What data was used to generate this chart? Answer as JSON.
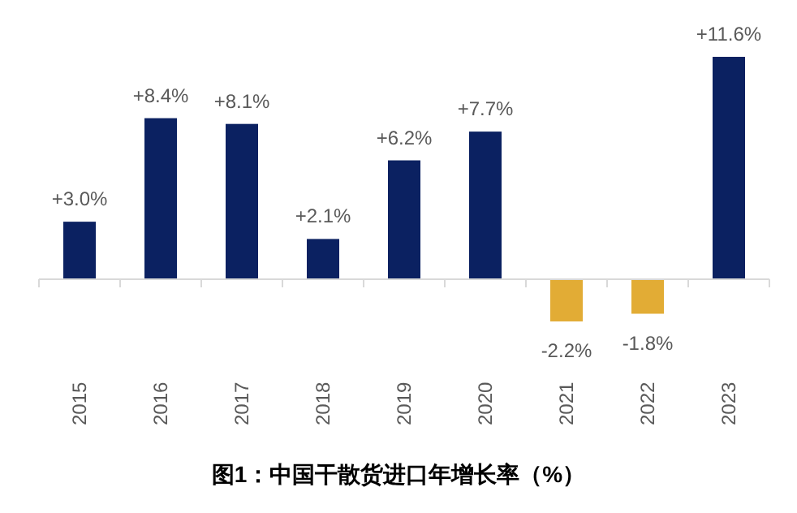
{
  "chart_data": {
    "type": "bar",
    "title": "图1：中国干散货进口年增长率（%）",
    "categories": [
      "2015",
      "2016",
      "2017",
      "2018",
      "2019",
      "2020",
      "2021",
      "2022",
      "2023"
    ],
    "values": [
      3.0,
      8.4,
      8.1,
      2.1,
      6.2,
      7.7,
      -2.2,
      -1.8,
      11.6
    ],
    "value_labels": [
      "+3.0%",
      "+8.4%",
      "+8.1%",
      "+2.1%",
      "+6.2%",
      "+7.7%",
      "-2.2%",
      "-1.8%",
      "+11.6%"
    ],
    "colors": [
      "#0b2161",
      "#0b2161",
      "#0b2161",
      "#0b2161",
      "#0b2161",
      "#0b2161",
      "#e2ac35",
      "#e2ac35",
      "#0b2161"
    ]
  }
}
